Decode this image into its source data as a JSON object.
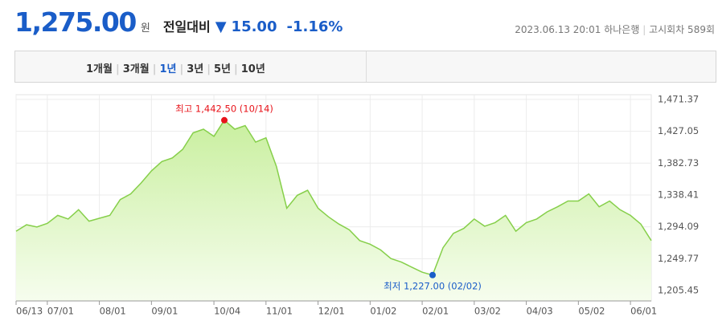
{
  "header": {
    "price": "1,275.00",
    "unit": "원",
    "compare_label": "전일대비",
    "change": "15.00",
    "change_pct": "-1.16%",
    "datetime": "2023.06.13 20:01",
    "bank": "하나은행",
    "round": "고시회차 589회"
  },
  "tabs": {
    "items": [
      "1개월",
      "3개월",
      "1년",
      "3년",
      "5년",
      "10년"
    ],
    "selected": 2
  },
  "chart_data": {
    "type": "area",
    "color": "#86cf4a",
    "categories": [
      "06/13",
      null,
      null,
      "07/01",
      null,
      null,
      null,
      null,
      "08/01",
      null,
      null,
      null,
      null,
      "09/01",
      null,
      null,
      null,
      null,
      null,
      "10/04",
      null,
      null,
      null,
      null,
      "11/01",
      null,
      null,
      null,
      null,
      "12/01",
      null,
      null,
      null,
      null,
      "01/02",
      null,
      null,
      null,
      null,
      "02/01",
      null,
      null,
      null,
      null,
      "03/02",
      null,
      null,
      null,
      null,
      "04/03",
      null,
      null,
      null,
      null,
      "05/02",
      null,
      null,
      null,
      null,
      "06/01",
      null,
      null
    ],
    "values": [
      1288,
      1297,
      1294,
      1299,
      1310,
      1305,
      1318,
      1302,
      1306,
      1310,
      1332,
      1340,
      1355,
      1372,
      1385,
      1390,
      1402,
      1425,
      1430,
      1420,
      1442.5,
      1430,
      1435,
      1412,
      1418,
      1378,
      1320,
      1338,
      1345,
      1320,
      1308,
      1298,
      1290,
      1275,
      1270,
      1262,
      1250,
      1245,
      1238,
      1231,
      1227,
      1265,
      1285,
      1292,
      1305,
      1295,
      1300,
      1310,
      1288,
      1300,
      1305,
      1315,
      1322,
      1330,
      1330,
      1340,
      1322,
      1330,
      1318,
      1310,
      1298,
      1275
    ],
    "ylim": [
      1191,
      1478
    ],
    "yticks": [
      {
        "value": 1205.45,
        "label": "1,205.45"
      },
      {
        "value": 1249.77,
        "label": "1,249.77"
      },
      {
        "value": 1294.09,
        "label": "1,294.09"
      },
      {
        "value": 1338.41,
        "label": "1,338.41"
      },
      {
        "value": 1382.73,
        "label": "1,382.73"
      },
      {
        "value": 1427.05,
        "label": "1,427.05"
      },
      {
        "value": 1471.37,
        "label": "1,471.37"
      }
    ],
    "grid": true,
    "max_label": "최고 1,442.50 (10/14)",
    "min_label": "최저 1,227.00 (02/02)"
  }
}
